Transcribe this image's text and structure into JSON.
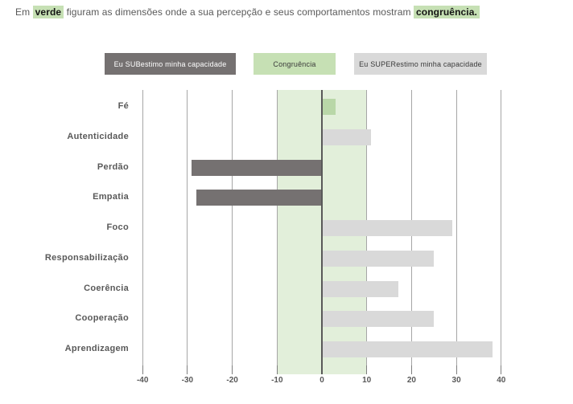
{
  "header": {
    "sentence_parts": [
      {
        "text": "Em ",
        "highlight": false
      },
      {
        "text": "verde",
        "highlight": true
      },
      {
        "text": " figuram as dimensões onde a sua percepção e seus comportamentos mostram ",
        "highlight": false
      },
      {
        "text": "congruência.",
        "highlight": true
      }
    ]
  },
  "legend": [
    {
      "label": "Eu SUBestimo minha capacidade",
      "type": "sub"
    },
    {
      "label": "Congruência",
      "type": "congruencia"
    },
    {
      "label": "Eu SUPERestimo minha capacidade",
      "type": "super"
    }
  ],
  "colors": {
    "sub_bar": "#757171",
    "congruencia_bar": "#b9d7a8",
    "super_bar": "#d9d9d9",
    "congruence_band": "#e2efda",
    "legend_green": "#c6e0b4",
    "highlight_bg": "#c6e0b4",
    "gridline": "#a6a6a6",
    "zero_line": "#595959",
    "text": "#595959"
  },
  "chart_data": {
    "type": "bar",
    "orientation": "horizontal",
    "title": "",
    "xlabel": "",
    "ylabel": "",
    "categories": [
      "Fé",
      "Autenticidade",
      "Perdão",
      "Empatia",
      "Foco",
      "Responsabilização",
      "Coerência",
      "Cooperação",
      "Aprendizagem"
    ],
    "values": [
      3,
      11,
      -29,
      -28,
      29,
      25,
      17,
      25,
      38
    ],
    "bar_types": [
      "congruencia",
      "super",
      "sub",
      "sub",
      "super",
      "super",
      "super",
      "super",
      "super"
    ],
    "x_ticks": [
      -40,
      -30,
      -20,
      -10,
      0,
      10,
      20,
      30,
      40
    ],
    "xlim": [
      -45,
      46
    ],
    "congruence_band": [
      -10,
      10
    ],
    "grid": "vertical",
    "legend_position": "top"
  }
}
